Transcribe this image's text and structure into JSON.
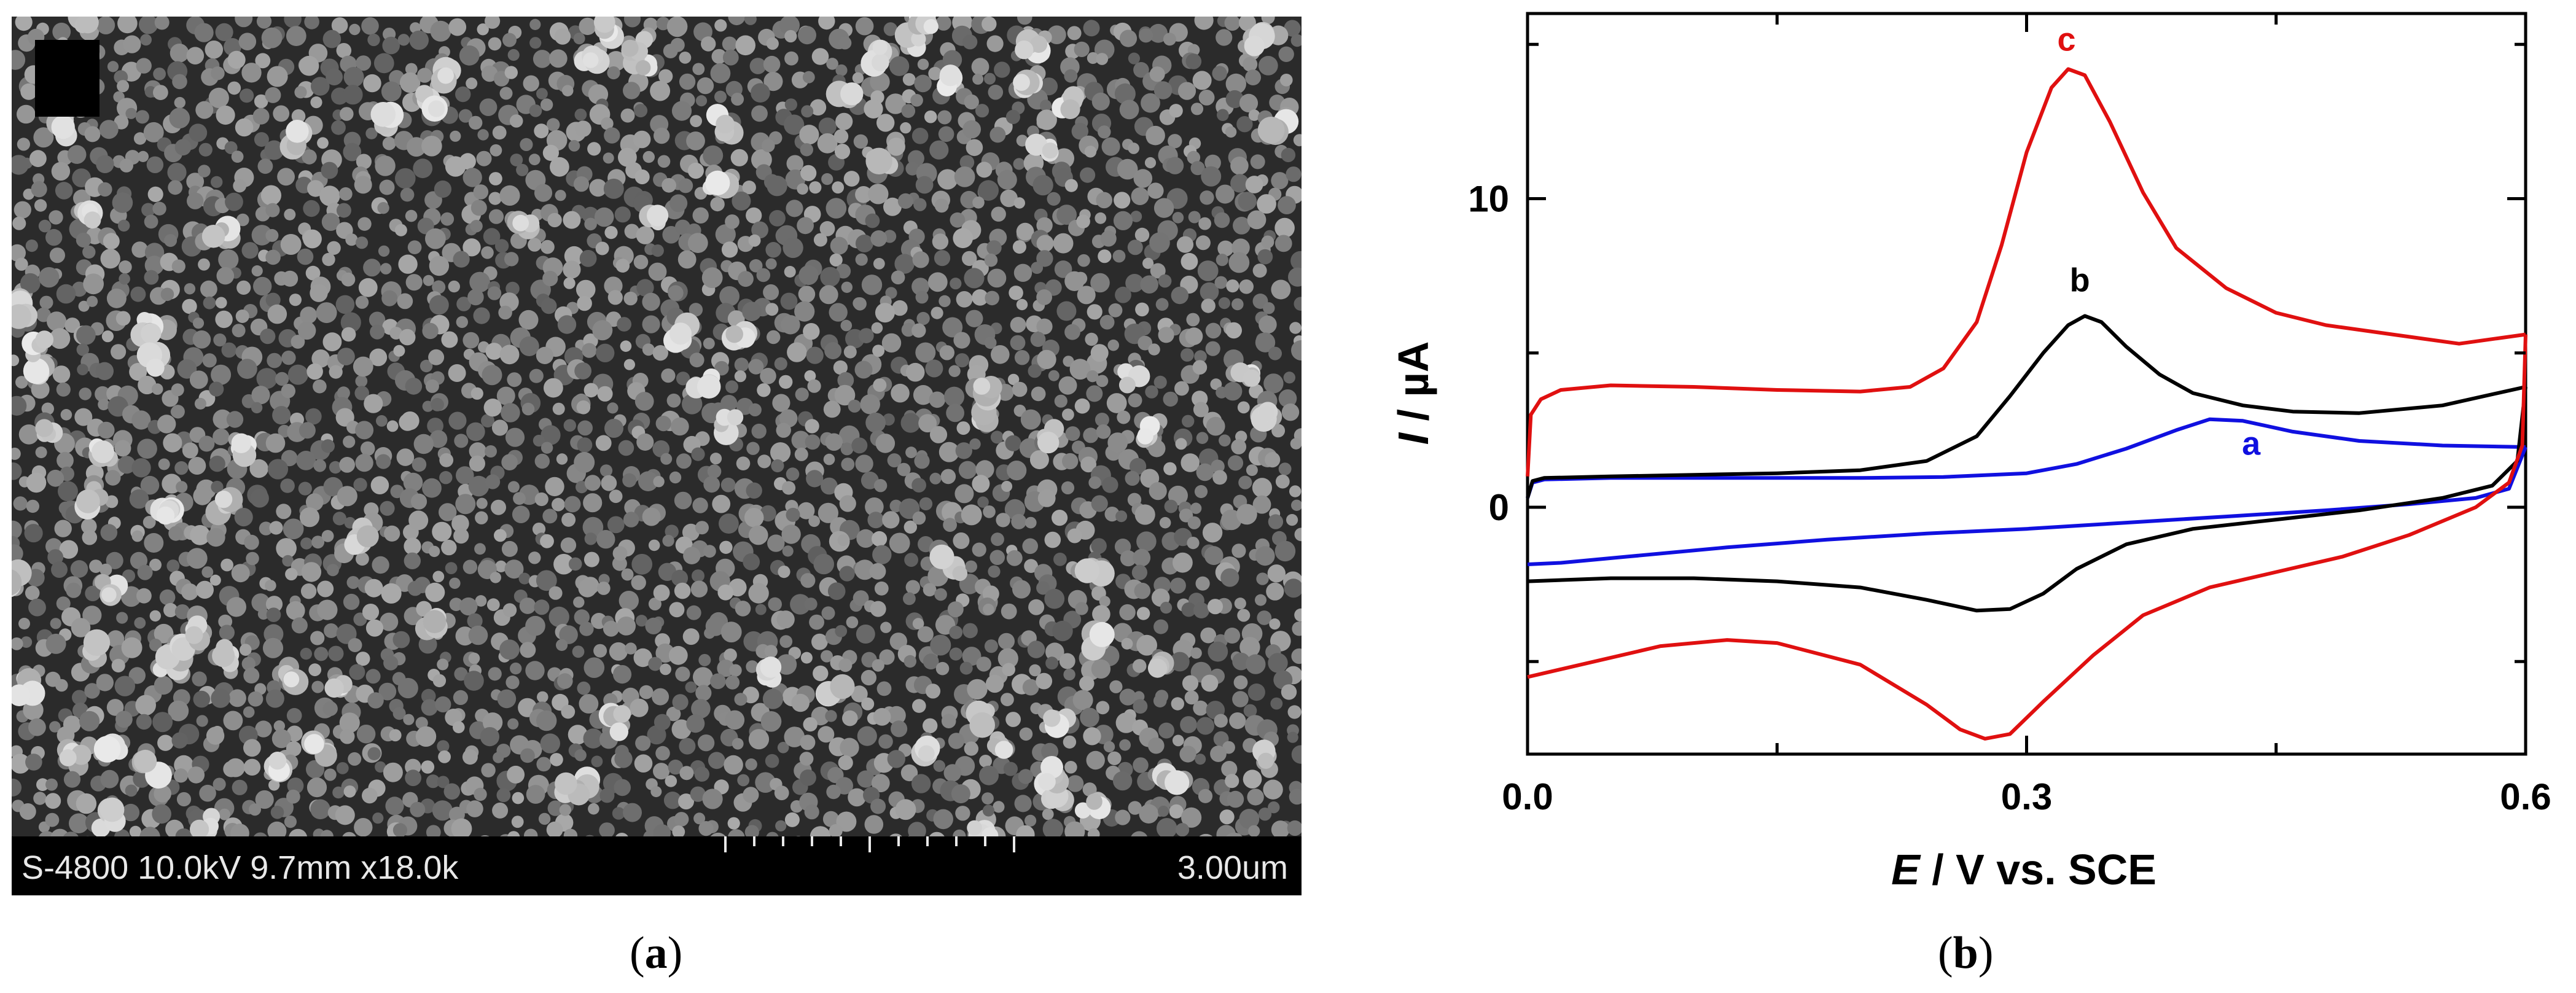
{
  "panel_a": {
    "info_text": "S-4800 10.0kV 9.7mm x18.0k",
    "scale_label": "3.00um",
    "label_prefix": "(",
    "label_letter": "a",
    "label_suffix": ")"
  },
  "panel_b": {
    "label_prefix": "(",
    "label_letter": "b",
    "label_suffix": ")"
  },
  "chart_data": {
    "type": "line",
    "xlabel_italic": "E",
    "xlabel_rest": " / V vs. SCE",
    "ylabel_italic": "I",
    "ylabel_rest": " / µA",
    "xlim": [
      0.0,
      0.6
    ],
    "ylim": [
      -8,
      16
    ],
    "x_ticks": [
      0.0,
      0.3,
      0.6
    ],
    "x_tick_labels": [
      "0.0",
      "0.3",
      "0.6"
    ],
    "y_ticks": [
      0,
      10
    ],
    "y_tick_labels": [
      "0",
      "10"
    ],
    "grid": false,
    "series": [
      {
        "name": "a",
        "color": "#1010e0",
        "label_x": 0.435,
        "label_y": 1.7,
        "forward": [
          [
            0.0,
            0.3
          ],
          [
            0.003,
            0.8
          ],
          [
            0.01,
            0.9
          ],
          [
            0.05,
            0.95
          ],
          [
            0.1,
            0.95
          ],
          [
            0.15,
            0.95
          ],
          [
            0.2,
            0.95
          ],
          [
            0.25,
            0.98
          ],
          [
            0.3,
            1.1
          ],
          [
            0.33,
            1.4
          ],
          [
            0.36,
            1.9
          ],
          [
            0.39,
            2.5
          ],
          [
            0.41,
            2.85
          ],
          [
            0.43,
            2.8
          ],
          [
            0.46,
            2.45
          ],
          [
            0.5,
            2.15
          ],
          [
            0.55,
            2.0
          ],
          [
            0.6,
            1.95
          ]
        ],
        "reverse": [
          [
            0.6,
            1.95
          ],
          [
            0.59,
            0.6
          ],
          [
            0.57,
            0.3
          ],
          [
            0.53,
            0.1
          ],
          [
            0.48,
            -0.1
          ],
          [
            0.42,
            -0.3
          ],
          [
            0.36,
            -0.5
          ],
          [
            0.3,
            -0.7
          ],
          [
            0.24,
            -0.85
          ],
          [
            0.18,
            -1.05
          ],
          [
            0.12,
            -1.3
          ],
          [
            0.06,
            -1.6
          ],
          [
            0.02,
            -1.8
          ],
          [
            0.0,
            -1.85
          ]
        ]
      },
      {
        "name": "b",
        "color": "#000000",
        "label_x": 0.332,
        "label_y": 7.0,
        "forward": [
          [
            0.0,
            0.3
          ],
          [
            0.003,
            0.85
          ],
          [
            0.01,
            0.95
          ],
          [
            0.05,
            1.0
          ],
          [
            0.1,
            1.05
          ],
          [
            0.15,
            1.1
          ],
          [
            0.2,
            1.2
          ],
          [
            0.24,
            1.5
          ],
          [
            0.27,
            2.3
          ],
          [
            0.29,
            3.6
          ],
          [
            0.31,
            5.0
          ],
          [
            0.325,
            5.9
          ],
          [
            0.335,
            6.2
          ],
          [
            0.345,
            6.0
          ],
          [
            0.36,
            5.2
          ],
          [
            0.38,
            4.3
          ],
          [
            0.4,
            3.7
          ],
          [
            0.43,
            3.3
          ],
          [
            0.46,
            3.1
          ],
          [
            0.5,
            3.05
          ],
          [
            0.55,
            3.3
          ],
          [
            0.6,
            3.9
          ]
        ],
        "reverse": [
          [
            0.6,
            3.9
          ],
          [
            0.595,
            1.5
          ],
          [
            0.58,
            0.7
          ],
          [
            0.55,
            0.3
          ],
          [
            0.5,
            -0.1
          ],
          [
            0.45,
            -0.4
          ],
          [
            0.4,
            -0.7
          ],
          [
            0.36,
            -1.2
          ],
          [
            0.33,
            -2.0
          ],
          [
            0.31,
            -2.8
          ],
          [
            0.29,
            -3.3
          ],
          [
            0.27,
            -3.35
          ],
          [
            0.24,
            -3.0
          ],
          [
            0.2,
            -2.6
          ],
          [
            0.15,
            -2.4
          ],
          [
            0.1,
            -2.3
          ],
          [
            0.05,
            -2.3
          ],
          [
            0.0,
            -2.4
          ]
        ]
      },
      {
        "name": "c",
        "color": "#e01010",
        "label_x": 0.324,
        "label_y": 14.8,
        "forward": [
          [
            0.0,
            1.0
          ],
          [
            0.002,
            3.0
          ],
          [
            0.008,
            3.5
          ],
          [
            0.02,
            3.8
          ],
          [
            0.05,
            3.95
          ],
          [
            0.1,
            3.9
          ],
          [
            0.15,
            3.8
          ],
          [
            0.2,
            3.75
          ],
          [
            0.23,
            3.9
          ],
          [
            0.25,
            4.5
          ],
          [
            0.27,
            6.0
          ],
          [
            0.285,
            8.5
          ],
          [
            0.3,
            11.5
          ],
          [
            0.315,
            13.6
          ],
          [
            0.325,
            14.2
          ],
          [
            0.335,
            14.0
          ],
          [
            0.35,
            12.5
          ],
          [
            0.37,
            10.2
          ],
          [
            0.39,
            8.4
          ],
          [
            0.42,
            7.1
          ],
          [
            0.45,
            6.3
          ],
          [
            0.48,
            5.9
          ],
          [
            0.52,
            5.6
          ],
          [
            0.56,
            5.3
          ],
          [
            0.6,
            5.6
          ]
        ],
        "reverse": [
          [
            0.6,
            5.6
          ],
          [
            0.598,
            2.0
          ],
          [
            0.59,
            0.8
          ],
          [
            0.57,
            0.0
          ],
          [
            0.53,
            -0.9
          ],
          [
            0.49,
            -1.6
          ],
          [
            0.45,
            -2.1
          ],
          [
            0.41,
            -2.6
          ],
          [
            0.37,
            -3.5
          ],
          [
            0.34,
            -4.8
          ],
          [
            0.31,
            -6.3
          ],
          [
            0.29,
            -7.35
          ],
          [
            0.275,
            -7.5
          ],
          [
            0.26,
            -7.2
          ],
          [
            0.24,
            -6.4
          ],
          [
            0.2,
            -5.1
          ],
          [
            0.15,
            -4.4
          ],
          [
            0.12,
            -4.3
          ],
          [
            0.08,
            -4.5
          ],
          [
            0.04,
            -5.0
          ],
          [
            0.0,
            -5.5
          ]
        ]
      }
    ]
  }
}
